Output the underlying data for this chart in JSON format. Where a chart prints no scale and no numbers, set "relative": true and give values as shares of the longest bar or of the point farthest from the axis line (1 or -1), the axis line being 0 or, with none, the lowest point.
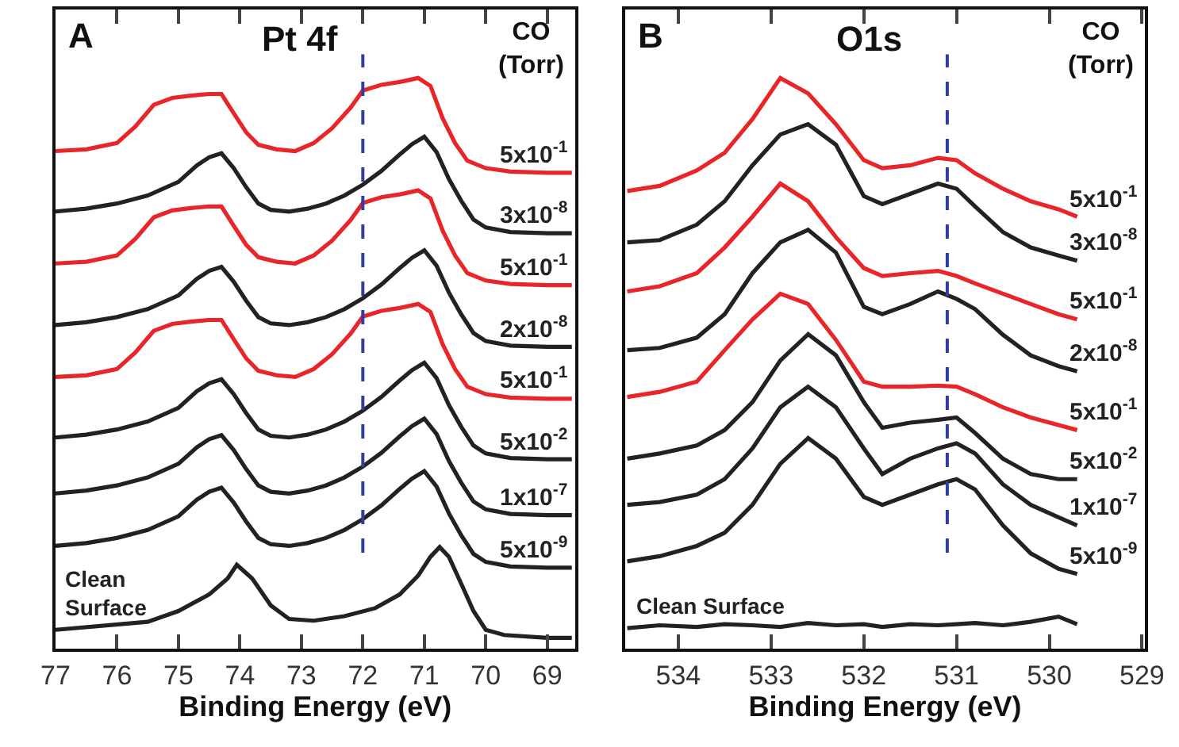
{
  "chart_data": [
    {
      "type": "line",
      "title": "A",
      "annotations": [
        "Pt 4f"
      ],
      "xlabel": "Binding Energy (eV)",
      "legend_title": "CO\n(Torr)",
      "relative": true,
      "line_style": "solid",
      "xlim": [
        77,
        68.55
      ],
      "xticks": [
        77,
        76,
        75,
        74,
        73,
        72,
        71,
        70,
        69
      ],
      "ref_lines": [
        {
          "axis": "x",
          "value": 72,
          "color": "#2f3e9e",
          "line_style": "dashed"
        }
      ],
      "series": [
        {
          "name": "5x10$^{-1}$",
          "color": "#e8262a",
          "x": [
            77.0,
            76.5,
            76.0,
            75.7,
            75.4,
            75.1,
            74.8,
            74.5,
            74.3,
            74.1,
            73.9,
            73.7,
            73.4,
            73.1,
            72.8,
            72.5,
            72.2,
            72.0,
            71.7,
            71.4,
            71.1,
            70.9,
            70.7,
            70.5,
            70.3,
            70.0,
            69.6,
            69.0,
            68.6
          ],
          "values": [
            0.872,
            0.875,
            0.886,
            0.915,
            0.953,
            0.965,
            0.969,
            0.972,
            0.972,
            0.938,
            0.905,
            0.883,
            0.875,
            0.872,
            0.886,
            0.912,
            0.948,
            0.978,
            0.988,
            0.993,
            1.0,
            0.986,
            0.929,
            0.886,
            0.855,
            0.842,
            0.836,
            0.834,
            0.834
          ]
        },
        {
          "name": "3x10$^{-8}$",
          "color": "#222222",
          "x": [
            77.0,
            76.5,
            76.0,
            75.5,
            75.0,
            74.7,
            74.5,
            74.3,
            74.1,
            73.9,
            73.7,
            73.5,
            73.2,
            72.9,
            72.6,
            72.3,
            72.0,
            71.7,
            71.4,
            71.2,
            71.0,
            70.8,
            70.6,
            70.4,
            70.2,
            70.0,
            69.6,
            69.0,
            68.6
          ],
          "values": [
            0.766,
            0.771,
            0.78,
            0.794,
            0.818,
            0.847,
            0.861,
            0.868,
            0.842,
            0.809,
            0.78,
            0.769,
            0.766,
            0.771,
            0.78,
            0.794,
            0.813,
            0.837,
            0.866,
            0.884,
            0.897,
            0.87,
            0.823,
            0.785,
            0.752,
            0.738,
            0.73,
            0.728,
            0.728
          ]
        },
        {
          "name": "5x10$^{-1}$",
          "color": "#e8262a",
          "x": [
            77.0,
            76.5,
            76.0,
            75.7,
            75.4,
            75.1,
            74.8,
            74.5,
            74.3,
            74.1,
            73.9,
            73.7,
            73.4,
            73.1,
            72.8,
            72.5,
            72.2,
            72.0,
            71.7,
            71.4,
            71.1,
            70.9,
            70.7,
            70.5,
            70.3,
            70.0,
            69.6,
            69.0,
            68.6
          ],
          "values": [
            0.675,
            0.678,
            0.689,
            0.718,
            0.756,
            0.768,
            0.772,
            0.775,
            0.775,
            0.741,
            0.708,
            0.686,
            0.678,
            0.675,
            0.689,
            0.715,
            0.751,
            0.781,
            0.791,
            0.796,
            0.803,
            0.789,
            0.732,
            0.689,
            0.658,
            0.645,
            0.639,
            0.637,
            0.637
          ]
        },
        {
          "name": "2x10$^{-8}$",
          "color": "#222222",
          "x": [
            77.0,
            76.5,
            76.0,
            75.5,
            75.0,
            74.7,
            74.5,
            74.3,
            74.1,
            73.9,
            73.7,
            73.5,
            73.2,
            72.9,
            72.6,
            72.3,
            72.0,
            71.7,
            71.4,
            71.2,
            71.0,
            70.8,
            70.6,
            70.4,
            70.2,
            70.0,
            69.6,
            69.0,
            68.6
          ],
          "values": [
            0.567,
            0.572,
            0.581,
            0.595,
            0.619,
            0.648,
            0.662,
            0.669,
            0.643,
            0.61,
            0.581,
            0.57,
            0.567,
            0.572,
            0.581,
            0.595,
            0.614,
            0.638,
            0.667,
            0.685,
            0.698,
            0.671,
            0.624,
            0.586,
            0.553,
            0.539,
            0.531,
            0.529,
            0.529
          ]
        },
        {
          "name": "5x10$^{-1}$",
          "color": "#e8262a",
          "x": [
            77.0,
            76.5,
            76.0,
            75.7,
            75.4,
            75.1,
            74.8,
            74.5,
            74.3,
            74.1,
            73.9,
            73.7,
            73.4,
            73.1,
            72.8,
            72.5,
            72.2,
            72.0,
            71.7,
            71.4,
            71.1,
            70.9,
            70.7,
            70.5,
            70.3,
            70.0,
            69.6,
            69.0,
            68.6
          ],
          "values": [
            0.476,
            0.479,
            0.49,
            0.519,
            0.557,
            0.569,
            0.573,
            0.576,
            0.576,
            0.542,
            0.509,
            0.487,
            0.479,
            0.476,
            0.49,
            0.516,
            0.552,
            0.582,
            0.592,
            0.597,
            0.604,
            0.59,
            0.533,
            0.49,
            0.459,
            0.446,
            0.44,
            0.438,
            0.438
          ]
        },
        {
          "name": "5x10$^{-2}$",
          "color": "#222222",
          "x": [
            77.0,
            76.5,
            76.0,
            75.5,
            75.0,
            74.7,
            74.5,
            74.3,
            74.1,
            73.9,
            73.7,
            73.5,
            73.2,
            72.9,
            72.6,
            72.3,
            72.0,
            71.7,
            71.4,
            71.2,
            71.0,
            70.8,
            70.6,
            70.4,
            70.2,
            70.0,
            69.6,
            69.0,
            68.6
          ],
          "values": [
            0.37,
            0.375,
            0.384,
            0.398,
            0.422,
            0.451,
            0.465,
            0.472,
            0.446,
            0.413,
            0.384,
            0.373,
            0.37,
            0.375,
            0.384,
            0.398,
            0.417,
            0.441,
            0.47,
            0.488,
            0.501,
            0.474,
            0.427,
            0.389,
            0.356,
            0.342,
            0.334,
            0.332,
            0.332
          ]
        },
        {
          "name": "1x10$^{-7}$",
          "color": "#222222",
          "x": [
            77.0,
            76.5,
            76.0,
            75.5,
            75.0,
            74.7,
            74.5,
            74.3,
            74.1,
            73.9,
            73.7,
            73.5,
            73.2,
            72.9,
            72.6,
            72.3,
            72.0,
            71.7,
            71.4,
            71.2,
            71.0,
            70.8,
            70.6,
            70.4,
            70.2,
            70.0,
            69.6,
            69.0,
            68.6
          ],
          "values": [
            0.272,
            0.277,
            0.286,
            0.3,
            0.324,
            0.353,
            0.367,
            0.374,
            0.348,
            0.315,
            0.286,
            0.275,
            0.272,
            0.277,
            0.286,
            0.3,
            0.319,
            0.343,
            0.372,
            0.39,
            0.403,
            0.376,
            0.329,
            0.291,
            0.258,
            0.244,
            0.236,
            0.234,
            0.234
          ]
        },
        {
          "name": "5x10$^{-9}$",
          "color": "#222222",
          "x": [
            77.0,
            76.5,
            76.0,
            75.5,
            75.0,
            74.7,
            74.5,
            74.3,
            74.1,
            73.9,
            73.7,
            73.5,
            73.2,
            72.9,
            72.6,
            72.3,
            72.0,
            71.7,
            71.4,
            71.2,
            71.0,
            70.8,
            70.6,
            70.4,
            70.2,
            70.0,
            69.6,
            69.0,
            68.6
          ],
          "values": [
            0.18,
            0.185,
            0.194,
            0.208,
            0.232,
            0.261,
            0.275,
            0.282,
            0.256,
            0.223,
            0.194,
            0.183,
            0.18,
            0.185,
            0.194,
            0.208,
            0.227,
            0.251,
            0.28,
            0.298,
            0.311,
            0.284,
            0.237,
            0.199,
            0.166,
            0.152,
            0.144,
            0.142,
            0.142
          ]
        },
        {
          "name": "Clean\nSurface",
          "color": "#222222",
          "x": [
            77.0,
            75.5,
            75.0,
            74.5,
            74.2,
            74.05,
            73.8,
            73.5,
            73.2,
            72.8,
            72.3,
            71.8,
            71.4,
            71.1,
            70.9,
            70.75,
            70.6,
            70.4,
            70.2,
            70.0,
            69.7,
            69.0,
            68.6
          ],
          "values": [
            0.033,
            0.047,
            0.066,
            0.095,
            0.123,
            0.147,
            0.123,
            0.076,
            0.052,
            0.049,
            0.057,
            0.071,
            0.095,
            0.128,
            0.161,
            0.178,
            0.161,
            0.114,
            0.066,
            0.033,
            0.024,
            0.019,
            0.019
          ]
        }
      ]
    },
    {
      "type": "line",
      "title": "B",
      "annotations": [
        "O1s"
      ],
      "xlabel": "Binding Energy (eV)",
      "legend_title": "CO\n(Torr)",
      "relative": true,
      "line_style": "solid",
      "xlim": [
        534.57,
        528.97
      ],
      "xticks": [
        534,
        533,
        532,
        531,
        530,
        529
      ],
      "x": [
        534.55,
        534.2,
        533.8,
        533.5,
        533.2,
        532.9,
        532.6,
        532.3,
        532.0,
        531.8,
        531.5,
        531.2,
        531.0,
        530.8,
        530.5,
        530.2,
        529.9,
        529.7
      ],
      "ref_lines": [
        {
          "axis": "x",
          "value": 531.1,
          "color": "#2f3e9e",
          "line_style": "dashed"
        }
      ],
      "series": [
        {
          "name": "5x10$^{-1}$",
          "color": "#e8262a",
          "values": [
            0.802,
            0.811,
            0.838,
            0.869,
            0.928,
            1.0,
            0.973,
            0.919,
            0.856,
            0.842,
            0.847,
            0.86,
            0.856,
            0.833,
            0.806,
            0.784,
            0.77,
            0.757
          ]
        },
        {
          "name": "3x10$^{-8}$",
          "color": "#222222",
          "values": [
            0.712,
            0.716,
            0.743,
            0.784,
            0.847,
            0.901,
            0.919,
            0.883,
            0.793,
            0.779,
            0.797,
            0.815,
            0.806,
            0.775,
            0.73,
            0.703,
            0.689,
            0.68
          ]
        },
        {
          "name": "5x10$^{-1}$",
          "color": "#e8262a",
          "values": [
            0.626,
            0.635,
            0.658,
            0.703,
            0.757,
            0.815,
            0.784,
            0.721,
            0.667,
            0.653,
            0.658,
            0.662,
            0.653,
            0.64,
            0.622,
            0.604,
            0.586,
            0.577
          ]
        },
        {
          "name": "2x10$^{-8}$",
          "color": "#222222",
          "values": [
            0.523,
            0.527,
            0.545,
            0.586,
            0.658,
            0.712,
            0.734,
            0.694,
            0.599,
            0.586,
            0.604,
            0.626,
            0.613,
            0.595,
            0.55,
            0.514,
            0.495,
            0.486
          ]
        },
        {
          "name": "5x10$^{-1}$",
          "color": "#e8262a",
          "values": [
            0.441,
            0.45,
            0.468,
            0.523,
            0.577,
            0.622,
            0.604,
            0.541,
            0.468,
            0.459,
            0.459,
            0.461,
            0.459,
            0.446,
            0.423,
            0.405,
            0.392,
            0.383
          ]
        },
        {
          "name": "5x10$^{-2}$",
          "color": "#222222",
          "values": [
            0.333,
            0.342,
            0.356,
            0.383,
            0.432,
            0.505,
            0.551,
            0.514,
            0.432,
            0.387,
            0.396,
            0.401,
            0.405,
            0.378,
            0.333,
            0.306,
            0.297,
            0.297
          ]
        },
        {
          "name": "1x10$^{-7}$",
          "color": "#222222",
          "values": [
            0.252,
            0.257,
            0.27,
            0.297,
            0.351,
            0.423,
            0.459,
            0.423,
            0.351,
            0.306,
            0.333,
            0.351,
            0.36,
            0.342,
            0.288,
            0.252,
            0.23,
            0.216
          ]
        },
        {
          "name": "5x10$^{-9}$",
          "color": "#222222",
          "values": [
            0.153,
            0.162,
            0.18,
            0.203,
            0.252,
            0.324,
            0.369,
            0.333,
            0.266,
            0.252,
            0.27,
            0.288,
            0.297,
            0.279,
            0.216,
            0.167,
            0.14,
            0.131
          ]
        },
        {
          "name": "Clean Surface",
          "color": "#222222",
          "values": [
            0.036,
            0.041,
            0.038,
            0.043,
            0.041,
            0.038,
            0.045,
            0.041,
            0.043,
            0.038,
            0.043,
            0.041,
            0.043,
            0.045,
            0.041,
            0.047,
            0.056,
            0.043
          ]
        }
      ]
    }
  ]
}
